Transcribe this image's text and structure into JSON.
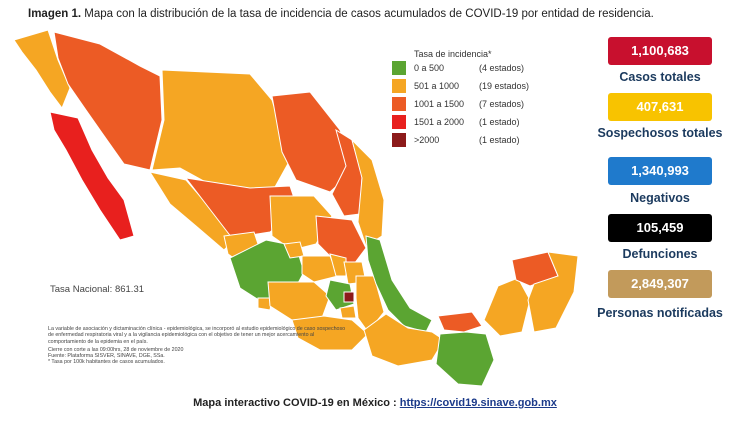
{
  "title": {
    "bold": "Imagen 1.",
    "text": "Mapa con la distribución de la tasa de incidencia de casos acumulados de COVID-19 por entidad de residencia."
  },
  "legend": {
    "title": "Tasa de incidencia*",
    "items": [
      {
        "range": "0 a 500",
        "count": "(4 estados)",
        "color": "#5ba532"
      },
      {
        "range": "501 a 1000",
        "count": "(19 estados)",
        "color": "#f5a623"
      },
      {
        "range": "1001 a 1500",
        "count": "(7 estados)",
        "color": "#ec5b25"
      },
      {
        "range": "1501 a 2000",
        "count": "(1 estado)",
        "color": "#e8201e"
      },
      {
        "range": ">2000",
        "count": "(1 estado)",
        "color": "#8c1a1a"
      }
    ]
  },
  "national_rate": "Tasa Nacional: 861.31",
  "notes": {
    "methodology": "La variable de asociación y dictaminación clínica - epidemiológica, se incorporó al estudio epidemiológico de caso sospechoso de enfermedad respiratoria viral y a la vigilancia epidemiológica con el objetivo de tener un mejor acercamiento al comportamiento de la epidemia en el país.",
    "cutoff": "Cierre con corte a las 09:00hrs, 28 de noviembre de 2020",
    "source": "Fuente: Plataforma SISVER, SINAVE, DGE, SSa.",
    "footnote": "* Tasa por 100k habitantes de casos acumulados."
  },
  "stats": [
    {
      "value": "1,100,683",
      "label": "Casos totales",
      "color": "#c8102e"
    },
    {
      "value": "407,631",
      "label": "Sospechosos totales",
      "color": "#f8c300"
    },
    {
      "value": "1,340,993",
      "label": "Negativos",
      "color": "#1f7acc"
    },
    {
      "value": "105,459",
      "label": "Defunciones",
      "color": "#000000"
    },
    {
      "value": "2,849,307",
      "label": "Personas notificadas",
      "color": "#c29a5b"
    }
  ],
  "footer": {
    "text": "Mapa interactivo COVID-19 en México :",
    "link": "https://covid19.sinave.gob.mx"
  },
  "map_colors": {
    "green": "#5ba532",
    "yellow_orange": "#f5a623",
    "orange_red": "#ec5b25",
    "red": "#e8201e",
    "dark_red": "#8c1a1a",
    "border": "#ffffff"
  }
}
